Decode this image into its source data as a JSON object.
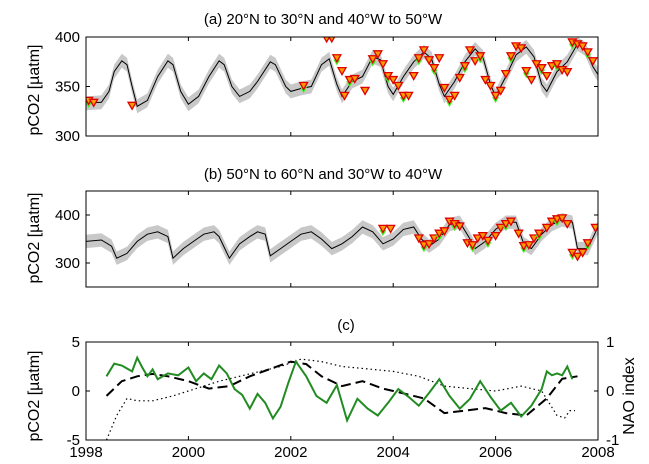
{
  "chart_data": [
    {
      "id": "a",
      "type": "line",
      "title": "(a) 20°N to 30°N and 40°W to 50°W",
      "ylabel": "pCO2 [µatm]",
      "xlim": [
        1998,
        2008
      ],
      "ylim": [
        300,
        400
      ],
      "yticks": [
        300,
        350,
        400
      ],
      "grid": false,
      "colors": {
        "model": "#000000",
        "band": "#c8c8c8",
        "obs_fill": "#ff9900",
        "obs_edge": "#dd0000",
        "obs2": "#44ee22"
      },
      "series": [
        {
          "role": "model",
          "x": [
            1998.0,
            1998.3,
            1998.45,
            1998.55,
            1998.7,
            1998.8,
            1998.9,
            1999.0,
            1999.2,
            1999.4,
            1999.6,
            1999.7,
            1999.85,
            2000.0,
            2000.2,
            2000.4,
            2000.6,
            2000.7,
            2000.85,
            2001.0,
            2001.2,
            2001.35,
            2001.6,
            2001.7,
            2001.9,
            2002.0,
            2002.2,
            2002.4,
            2002.6,
            2002.75,
            2002.9,
            2003.0,
            2003.2,
            2003.4,
            2003.6,
            2003.75,
            2003.9,
            2004.0,
            2004.2,
            2004.4,
            2004.6,
            2004.75,
            2004.9,
            2005.0,
            2005.2,
            2005.4,
            2005.6,
            2005.75,
            2005.9,
            2006.0,
            2006.2,
            2006.4,
            2006.6,
            2006.75,
            2006.9,
            2007.0,
            2007.2,
            2007.4,
            2007.6,
            2007.75,
            2007.9,
            2008.0
          ],
          "y": [
            333,
            334,
            345,
            365,
            376,
            372,
            350,
            330,
            336,
            360,
            376,
            372,
            345,
            332,
            340,
            360,
            376,
            372,
            350,
            340,
            345,
            355,
            375,
            372,
            350,
            345,
            348,
            350,
            372,
            378,
            352,
            340,
            355,
            360,
            380,
            377,
            350,
            342,
            360,
            375,
            385,
            378,
            352,
            340,
            355,
            375,
            388,
            380,
            352,
            340,
            360,
            382,
            390,
            380,
            352,
            345,
            365,
            375,
            393,
            388,
            370,
            362
          ]
        },
        {
          "role": "observations",
          "x": [
            1998.05,
            1998.15,
            1998.9,
            2002.25,
            2002.7,
            2002.8,
            2002.9,
            2003.0,
            2003.05,
            2003.15,
            2003.25,
            2003.45,
            2003.6,
            2003.7,
            2003.8,
            2003.9,
            2004.0,
            2004.1,
            2004.2,
            2004.3,
            2004.4,
            2004.5,
            2004.6,
            2004.7,
            2004.8,
            2004.9,
            2005.0,
            2005.1,
            2005.2,
            2005.3,
            2005.4,
            2005.5,
            2005.6,
            2005.7,
            2005.8,
            2005.9,
            2006.0,
            2006.1,
            2006.2,
            2006.3,
            2006.4,
            2006.5,
            2006.6,
            2006.7,
            2006.8,
            2006.9,
            2007.0,
            2007.1,
            2007.2,
            2007.3,
            2007.4,
            2007.5,
            2007.6,
            2007.7,
            2007.8,
            2007.9
          ],
          "y": [
            335,
            333,
            330,
            350,
            398,
            398,
            378,
            365,
            340,
            356,
            357,
            345,
            377,
            382,
            372,
            360,
            356,
            350,
            340,
            340,
            360,
            378,
            386,
            376,
            368,
            378,
            348,
            336,
            340,
            358,
            370,
            386,
            375,
            380,
            356,
            350,
            340,
            345,
            362,
            380,
            390,
            388,
            365,
            356,
            372,
            368,
            360,
            370,
            372,
            366,
            364,
            394,
            392,
            390,
            384,
            375
          ]
        }
      ]
    },
    {
      "id": "b",
      "type": "line",
      "title": "(b) 50°N to 60°N and 30°W to 40°W",
      "ylabel": "pCO2 [µatm]",
      "xlim": [
        1998,
        2008
      ],
      "ylim": [
        250,
        450
      ],
      "yticks": [
        300,
        400
      ],
      "grid": false,
      "colors": {
        "model": "#000000",
        "band": "#c8c8c8",
        "obs_fill": "#ff9900",
        "obs_edge": "#dd0000",
        "obs2": "#44ee22"
      },
      "series": [
        {
          "role": "model",
          "x": [
            1998.0,
            1998.3,
            1998.5,
            1998.6,
            1998.8,
            1999.0,
            1999.2,
            1999.4,
            1999.6,
            1999.7,
            1999.9,
            2000.1,
            2000.3,
            2000.5,
            2000.6,
            2000.8,
            2001.0,
            2001.2,
            2001.35,
            2001.5,
            2001.6,
            2001.8,
            2002.0,
            2002.2,
            2002.4,
            2002.6,
            2002.8,
            2003.0,
            2003.2,
            2003.4,
            2003.6,
            2003.8,
            2004.0,
            2004.2,
            2004.4,
            2004.55,
            2004.7,
            2004.9,
            2005.1,
            2005.3,
            2005.5,
            2005.6,
            2005.8,
            2006.0,
            2006.2,
            2006.4,
            2006.55,
            2006.7,
            2006.9,
            2007.1,
            2007.3,
            2007.5,
            2007.6,
            2007.8,
            2008.0
          ],
          "y": [
            345,
            348,
            335,
            310,
            320,
            345,
            360,
            365,
            355,
            310,
            330,
            345,
            360,
            365,
            355,
            310,
            340,
            355,
            365,
            360,
            315,
            330,
            345,
            360,
            365,
            350,
            330,
            340,
            355,
            375,
            365,
            340,
            350,
            370,
            375,
            350,
            335,
            350,
            380,
            385,
            350,
            330,
            345,
            370,
            385,
            385,
            340,
            330,
            360,
            380,
            390,
            385,
            330,
            330,
            375
          ]
        },
        {
          "role": "observations",
          "x": [
            2003.8,
            2003.95,
            2004.5,
            2004.6,
            2004.7,
            2004.8,
            2004.9,
            2005.0,
            2005.1,
            2005.2,
            2005.3,
            2005.45,
            2005.55,
            2005.65,
            2005.75,
            2005.85,
            2006.0,
            2006.1,
            2006.2,
            2006.3,
            2006.45,
            2006.55,
            2006.65,
            2006.75,
            2006.85,
            2007.0,
            2007.1,
            2007.2,
            2007.3,
            2007.4,
            2007.5,
            2007.6,
            2007.7,
            2007.8,
            2007.95
          ],
          "y": [
            370,
            370,
            350,
            336,
            338,
            350,
            360,
            365,
            385,
            380,
            375,
            340,
            336,
            350,
            355,
            345,
            355,
            372,
            380,
            385,
            360,
            334,
            336,
            350,
            360,
            372,
            385,
            390,
            392,
            380,
            320,
            312,
            320,
            340,
            372
          ]
        }
      ]
    },
    {
      "id": "c",
      "type": "line",
      "title": "(c)",
      "ylabel": "pCO2 [µatm]",
      "y2label": "NAO index",
      "xlim": [
        1998,
        2008
      ],
      "xticks": [
        1998,
        2000,
        2002,
        2004,
        2006,
        2008
      ],
      "ylim": [
        -5,
        5
      ],
      "yticks": [
        -5,
        0,
        5
      ],
      "y2lim": [
        -1,
        1
      ],
      "y2ticks": [
        -1,
        0,
        1
      ],
      "grid": false,
      "colors": {
        "green": "#228b22",
        "black": "#000000"
      },
      "series": [
        {
          "role": "green solid (left axis)",
          "x": [
            1998.4,
            1998.55,
            1998.7,
            1998.9,
            1999.0,
            1999.1,
            1999.2,
            1999.3,
            1999.4,
            1999.6,
            1999.8,
            2000.0,
            2000.15,
            2000.3,
            2000.45,
            2000.6,
            2000.75,
            2000.9,
            2001.05,
            2001.2,
            2001.35,
            2001.5,
            2001.65,
            2001.8,
            2001.95,
            2002.1,
            2002.3,
            2002.5,
            2002.7,
            2002.9,
            2003.1,
            2003.3,
            2003.5,
            2003.7,
            2003.9,
            2004.1,
            2004.3,
            2004.5,
            2004.7,
            2004.9,
            2005.1,
            2005.3,
            2005.5,
            2005.7,
            2005.9,
            2006.1,
            2006.3,
            2006.5,
            2006.7,
            2006.9,
            2007.0,
            2007.1,
            2007.2,
            2007.3,
            2007.4,
            2007.5
          ],
          "y": [
            1.5,
            2.8,
            2.6,
            2.0,
            3.4,
            2.4,
            1.5,
            2.2,
            1.2,
            1.8,
            1.6,
            2.4,
            1.0,
            1.8,
            1.2,
            2.6,
            1.8,
            0.2,
            -0.4,
            -1.8,
            -0.3,
            -1.2,
            -2.8,
            -1.6,
            0.8,
            3.0,
            1.5,
            -0.5,
            -1.2,
            0.6,
            -3.0,
            -0.8,
            -1.8,
            -2.5,
            -1.2,
            0.2,
            -0.6,
            -1.5,
            -0.2,
            1.2,
            -0.5,
            -1.8,
            -0.8,
            1.0,
            -0.6,
            -2.0,
            -1.2,
            -2.6,
            -1.5,
            0.2,
            2.0,
            1.6,
            1.8,
            1.6,
            2.5,
            1.2
          ]
        },
        {
          "role": "black dashed (right axis)",
          "x": [
            1998.4,
            1998.7,
            1999.0,
            1999.3,
            1999.6,
            2000.0,
            2000.4,
            2000.8,
            2001.2,
            2001.6,
            2002.0,
            2002.3,
            2002.6,
            2003.0,
            2003.4,
            2003.8,
            2004.2,
            2004.6,
            2005.0,
            2005.4,
            2005.8,
            2006.2,
            2006.6,
            2007.0,
            2007.3,
            2007.6
          ],
          "y": [
            -0.1,
            0.2,
            0.3,
            0.35,
            0.3,
            0.2,
            0.05,
            0.1,
            0.3,
            0.45,
            0.6,
            0.55,
            0.3,
            0.1,
            0.2,
            0.05,
            -0.05,
            -0.15,
            -0.45,
            -0.4,
            -0.35,
            -0.45,
            -0.5,
            -0.15,
            0.25,
            0.3
          ]
        },
        {
          "role": "black dotted (right axis)",
          "x": [
            1998.4,
            1998.6,
            1998.8,
            1999.0,
            1999.3,
            1999.7,
            2000.0,
            2000.3,
            2000.6,
            2001.0,
            2001.4,
            2001.8,
            2002.2,
            2002.6,
            2003.0,
            2003.5,
            2004.0,
            2004.5,
            2005.0,
            2005.5,
            2006.0,
            2006.5,
            2006.9,
            2007.2,
            2007.35,
            2007.45,
            2007.55
          ],
          "y": [
            -1.0,
            -0.5,
            -0.15,
            -0.2,
            -0.2,
            -0.1,
            0.0,
            0.1,
            0.2,
            0.3,
            0.4,
            0.5,
            0.65,
            0.6,
            0.5,
            0.45,
            0.4,
            0.3,
            0.1,
            0.05,
            0.0,
            0.1,
            0.0,
            -0.5,
            -0.55,
            -0.4,
            -0.4
          ]
        }
      ]
    }
  ]
}
